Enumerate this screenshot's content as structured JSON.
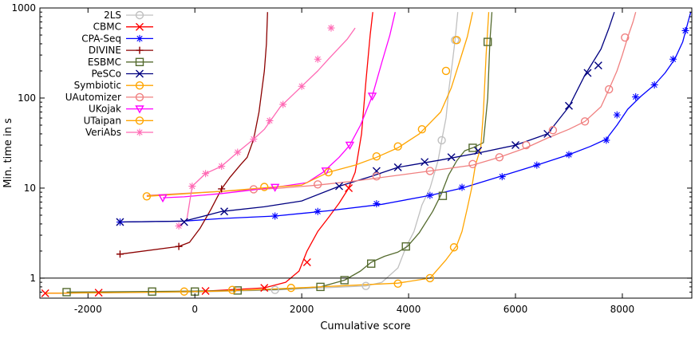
{
  "chart_data": {
    "type": "line",
    "xlabel": "Cumulative score",
    "ylabel": "Min. time in s",
    "xlim": [
      -2900,
      9300
    ],
    "ylim": [
      0.6,
      1000
    ],
    "y_scale": "log",
    "grid": false,
    "legend_position": "top-left",
    "reference_lines": [
      {
        "axis": "y",
        "value": 1
      }
    ],
    "x_ticks": [
      {
        "value": -2000,
        "label": "-2000"
      },
      {
        "value": 0,
        "label": "0"
      },
      {
        "value": 2000,
        "label": "2000"
      },
      {
        "value": 4000,
        "label": "4000"
      },
      {
        "value": 6000,
        "label": "6000"
      },
      {
        "value": 8000,
        "label": "8000"
      }
    ],
    "y_ticks": [
      {
        "value": 1,
        "label": "1"
      },
      {
        "value": 10,
        "label": "10"
      },
      {
        "value": 100,
        "label": "100"
      },
      {
        "value": 1000,
        "label": "1000"
      }
    ],
    "series": [
      {
        "name": "2LS",
        "color": "#c0c0c0",
        "marker": "circle",
        "points": [
          [
            -2800,
            0.68
          ],
          [
            0,
            0.7
          ],
          [
            1500,
            0.74
          ],
          [
            3200,
            0.82
          ],
          [
            3500,
            0.9
          ],
          [
            3800,
            1.3
          ],
          [
            3950,
            2.2
          ],
          [
            4100,
            3.3
          ],
          [
            4250,
            6.5
          ],
          [
            4400,
            10
          ],
          [
            4550,
            20
          ],
          [
            4620,
            34
          ],
          [
            4700,
            60
          ],
          [
            4750,
            120
          ],
          [
            4820,
            250
          ],
          [
            4870,
            440
          ],
          [
            4920,
            900
          ]
        ],
        "markers": [
          [
            1500,
            0.74
          ],
          [
            3200,
            0.82
          ],
          [
            4620,
            34
          ],
          [
            4870,
            440
          ]
        ]
      },
      {
        "name": "CBMC",
        "color": "#ff0000",
        "marker": "x",
        "points": [
          [
            -2800,
            0.68
          ],
          [
            -1800,
            0.69
          ],
          [
            200,
            0.72
          ],
          [
            1300,
            0.78
          ],
          [
            1700,
            0.9
          ],
          [
            1950,
            1.2
          ],
          [
            2100,
            2
          ],
          [
            2300,
            3.3
          ],
          [
            2500,
            4.7
          ],
          [
            2700,
            6.8
          ],
          [
            2870,
            9.8
          ],
          [
            3000,
            15
          ],
          [
            3120,
            40
          ],
          [
            3200,
            150
          ],
          [
            3280,
            500
          ],
          [
            3330,
            900
          ]
        ],
        "markers": [
          [
            -2800,
            0.68
          ],
          [
            -1800,
            0.69
          ],
          [
            200,
            0.72
          ],
          [
            1300,
            0.78
          ],
          [
            2100,
            1.5
          ],
          [
            2880,
            10
          ]
        ]
      },
      {
        "name": "CPA-Seq",
        "color": "#0000ff",
        "marker": "asterisk",
        "points": [
          [
            -1400,
            4.2
          ],
          [
            -200,
            4.3
          ],
          [
            500,
            4.6
          ],
          [
            1500,
            4.9
          ],
          [
            2500,
            5.6
          ],
          [
            3500,
            6.6
          ],
          [
            4400,
            8.3
          ],
          [
            5000,
            10
          ],
          [
            5700,
            13.4
          ],
          [
            6400,
            18
          ],
          [
            7000,
            23.5
          ],
          [
            7400,
            29
          ],
          [
            7700,
            35
          ],
          [
            7900,
            50
          ],
          [
            8100,
            75
          ],
          [
            8350,
            105
          ],
          [
            8600,
            140
          ],
          [
            8800,
            190
          ],
          [
            8980,
            270
          ],
          [
            9130,
            420
          ],
          [
            9230,
            700
          ],
          [
            9280,
            900
          ]
        ],
        "markers": [
          [
            -1400,
            4.2
          ],
          [
            1500,
            4.9
          ],
          [
            2300,
            5.5
          ],
          [
            3400,
            6.7
          ],
          [
            4400,
            8.3
          ],
          [
            5000,
            10.2
          ],
          [
            5750,
            13.4
          ],
          [
            6400,
            18
          ],
          [
            7000,
            23.5
          ],
          [
            7700,
            34
          ],
          [
            7900,
            65
          ],
          [
            8250,
            103
          ],
          [
            8600,
            140
          ],
          [
            8950,
            270
          ],
          [
            9180,
            560
          ]
        ]
      },
      {
        "name": "DIVINE",
        "color": "#8b0000",
        "marker": "plus",
        "points": [
          [
            -1400,
            1.85
          ],
          [
            -300,
            2.25
          ],
          [
            -100,
            2.5
          ],
          [
            100,
            3.6
          ],
          [
            300,
            5.8
          ],
          [
            500,
            9.8
          ],
          [
            650,
            13
          ],
          [
            850,
            18
          ],
          [
            980,
            22
          ],
          [
            1100,
            35
          ],
          [
            1200,
            70
          ],
          [
            1300,
            200
          ],
          [
            1340,
            400
          ],
          [
            1360,
            900
          ]
        ],
        "markers": [
          [
            -1400,
            1.85
          ],
          [
            -300,
            2.25
          ],
          [
            500,
            9.8
          ]
        ]
      },
      {
        "name": "ESBMC",
        "color": "#556b2f",
        "marker": "square",
        "points": [
          [
            -2400,
            0.7
          ],
          [
            -800,
            0.71
          ],
          [
            0,
            0.72
          ],
          [
            800,
            0.73
          ],
          [
            1500,
            0.75
          ],
          [
            2350,
            0.8
          ],
          [
            2800,
            0.95
          ],
          [
            3100,
            1.2
          ],
          [
            3300,
            1.5
          ],
          [
            3550,
            1.75
          ],
          [
            3800,
            1.95
          ],
          [
            3980,
            2.25
          ],
          [
            4200,
            3.2
          ],
          [
            4450,
            5.5
          ],
          [
            4600,
            8.3
          ],
          [
            4750,
            14
          ],
          [
            4900,
            20
          ],
          [
            5050,
            26
          ],
          [
            5200,
            28
          ],
          [
            5400,
            32
          ],
          [
            5480,
            100
          ],
          [
            5520,
            420
          ],
          [
            5560,
            900
          ]
        ],
        "markers": [
          [
            -2400,
            0.7
          ],
          [
            -800,
            0.71
          ],
          [
            0,
            0.71
          ],
          [
            800,
            0.73
          ],
          [
            2350,
            0.8
          ],
          [
            2800,
            0.95
          ],
          [
            3300,
            1.45
          ],
          [
            3950,
            2.25
          ],
          [
            4640,
            8.2
          ],
          [
            5200,
            28
          ],
          [
            5480,
            420
          ]
        ]
      },
      {
        "name": "PeSCo",
        "color": "#000080",
        "marker": "x",
        "points": [
          [
            -1400,
            4.2
          ],
          [
            -200,
            4.3
          ],
          [
            500,
            5.5
          ],
          [
            1300,
            6.2
          ],
          [
            2000,
            7.2
          ],
          [
            2700,
            10.5
          ],
          [
            3300,
            13.5
          ],
          [
            3800,
            17
          ],
          [
            4600,
            20.5
          ],
          [
            5300,
            24.5
          ],
          [
            6000,
            30
          ],
          [
            6600,
            40
          ],
          [
            7000,
            80
          ],
          [
            7300,
            180
          ],
          [
            7600,
            350
          ],
          [
            7750,
            600
          ],
          [
            7850,
            900
          ]
        ],
        "markers": [
          [
            -1400,
            4.2
          ],
          [
            -200,
            4.2
          ],
          [
            550,
            5.5
          ],
          [
            2700,
            10.5
          ],
          [
            3400,
            15.5
          ],
          [
            3800,
            17
          ],
          [
            4300,
            19.5
          ],
          [
            4800,
            22
          ],
          [
            5300,
            26
          ],
          [
            6000,
            30
          ],
          [
            6600,
            40
          ],
          [
            7000,
            82
          ],
          [
            7350,
            190
          ],
          [
            7550,
            230
          ]
        ]
      },
      {
        "name": "Symbiotic",
        "color": "#ffa500",
        "marker": "circle",
        "points": [
          [
            -2800,
            0.68
          ],
          [
            -500,
            0.7
          ],
          [
            500,
            0.72
          ],
          [
            1500,
            0.76
          ],
          [
            2700,
            0.82
          ],
          [
            3800,
            0.88
          ],
          [
            4400,
            1
          ],
          [
            4700,
            1.6
          ],
          [
            4900,
            2.3
          ],
          [
            5000,
            3.3
          ],
          [
            5100,
            6
          ],
          [
            5180,
            10
          ],
          [
            5250,
            18
          ],
          [
            5350,
            28
          ],
          [
            5400,
            70
          ],
          [
            5450,
            300
          ],
          [
            5500,
            900
          ]
        ],
        "markers": [
          [
            -200,
            0.71
          ],
          [
            700,
            0.74
          ],
          [
            1800,
            0.78
          ],
          [
            3800,
            0.87
          ],
          [
            4400,
            1
          ],
          [
            4850,
            2.2
          ]
        ]
      },
      {
        "name": "UAutomizer",
        "color": "#f08080",
        "marker": "circle",
        "points": [
          [
            -900,
            8.3
          ],
          [
            500,
            9.2
          ],
          [
            1600,
            10
          ],
          [
            2300,
            10.8
          ],
          [
            3000,
            12
          ],
          [
            4400,
            15.5
          ],
          [
            5200,
            18
          ],
          [
            5700,
            22
          ],
          [
            6200,
            28
          ],
          [
            6600,
            36
          ],
          [
            7000,
            45
          ],
          [
            7300,
            55
          ],
          [
            7600,
            80
          ],
          [
            7750,
            125
          ],
          [
            7900,
            200
          ],
          [
            8000,
            300
          ],
          [
            8100,
            470
          ],
          [
            8200,
            700
          ],
          [
            8250,
            900
          ]
        ],
        "markers": [
          [
            1100,
            9.7
          ],
          [
            2300,
            11
          ],
          [
            3400,
            13.5
          ],
          [
            4400,
            15.5
          ],
          [
            5200,
            18.5
          ],
          [
            5700,
            22
          ],
          [
            6200,
            30
          ],
          [
            6700,
            44
          ],
          [
            7300,
            55
          ],
          [
            7750,
            125
          ],
          [
            8050,
            470
          ]
        ]
      },
      {
        "name": "UKojak",
        "color": "#ff00ff",
        "marker": "triangle",
        "points": [
          [
            -600,
            7.8
          ],
          [
            -200,
            8
          ],
          [
            500,
            8.7
          ],
          [
            1500,
            10.2
          ],
          [
            2100,
            11.5
          ],
          [
            2400,
            15
          ],
          [
            2700,
            22
          ],
          [
            2900,
            30
          ],
          [
            3100,
            50
          ],
          [
            3320,
            105
          ],
          [
            3500,
            250
          ],
          [
            3650,
            500
          ],
          [
            3750,
            900
          ]
        ],
        "markers": [
          [
            -600,
            7.8
          ],
          [
            1500,
            10.2
          ],
          [
            2450,
            15.5
          ],
          [
            2900,
            30
          ],
          [
            3320,
            105
          ]
        ]
      },
      {
        "name": "UTaipan",
        "color": "#ffa500",
        "marker": "circle",
        "points": [
          [
            -900,
            8.1
          ],
          [
            500,
            9.2
          ],
          [
            1400,
            10.2
          ],
          [
            2000,
            10.8
          ],
          [
            2500,
            15
          ],
          [
            3000,
            18
          ],
          [
            3400,
            22
          ],
          [
            3800,
            28
          ],
          [
            4200,
            40
          ],
          [
            4600,
            70
          ],
          [
            4800,
            130
          ],
          [
            4950,
            250
          ],
          [
            5100,
            480
          ],
          [
            5200,
            900
          ]
        ],
        "markers": [
          [
            -900,
            8.1
          ],
          [
            1300,
            10.3
          ],
          [
            2500,
            15
          ],
          [
            3400,
            22.5
          ],
          [
            3800,
            29
          ],
          [
            4250,
            45
          ],
          [
            4700,
            200
          ],
          [
            4900,
            440
          ]
        ]
      },
      {
        "name": "VeriAbs",
        "color": "#ff69b4",
        "marker": "asterisk",
        "points": [
          [
            -300,
            3.7
          ],
          [
            -150,
            4.5
          ],
          [
            -50,
            10.5
          ],
          [
            200,
            14.5
          ],
          [
            500,
            17.5
          ],
          [
            800,
            25
          ],
          [
            1100,
            35
          ],
          [
            1300,
            45
          ],
          [
            1600,
            80
          ],
          [
            2000,
            135
          ],
          [
            2300,
            200
          ],
          [
            2500,
            270
          ],
          [
            2850,
            450
          ],
          [
            3000,
            600
          ]
        ],
        "markers": [
          [
            -300,
            3.8
          ],
          [
            -50,
            10.5
          ],
          [
            200,
            14.5
          ],
          [
            500,
            17.5
          ],
          [
            800,
            25
          ],
          [
            1100,
            35
          ],
          [
            1400,
            56
          ],
          [
            1650,
            85
          ],
          [
            2000,
            135
          ],
          [
            2300,
            270
          ],
          [
            2550,
            600
          ]
        ]
      }
    ]
  }
}
